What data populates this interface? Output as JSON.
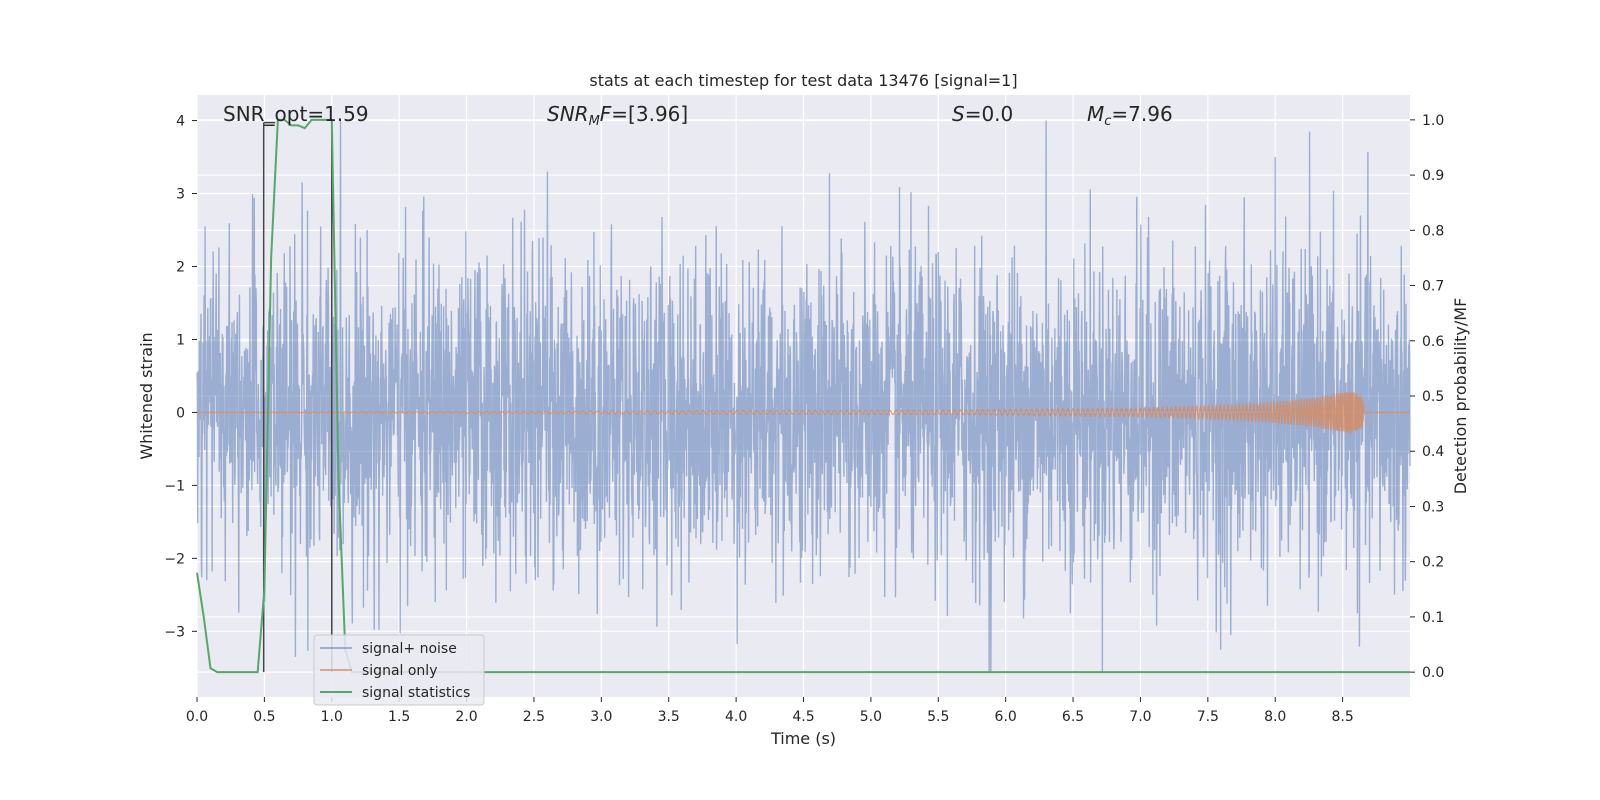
{
  "chart_data": {
    "type": "line",
    "title": "stats at each timestep for test data 13476 [signal=1]",
    "xlabel": "Time (s)",
    "ylabel": "Whitened strain",
    "y2label": "Detection probability/MF",
    "xlim": [
      0.0,
      9.0
    ],
    "ylim": [
      -3.9,
      4.35
    ],
    "y2lim": [
      -0.045,
      1.045
    ],
    "x_ticks": [
      "0.0",
      "0.5",
      "1.0",
      "1.5",
      "2.0",
      "2.5",
      "3.0",
      "3.5",
      "4.0",
      "4.5",
      "5.0",
      "5.5",
      "6.0",
      "6.5",
      "7.0",
      "7.5",
      "8.0",
      "8.5"
    ],
    "x_tick_values": [
      0.0,
      0.5,
      1.0,
      1.5,
      2.0,
      2.5,
      3.0,
      3.5,
      4.0,
      4.5,
      5.0,
      5.5,
      6.0,
      6.5,
      7.0,
      7.5,
      8.0,
      8.5
    ],
    "y_ticks": [
      "−3",
      "−2",
      "−1",
      "0",
      "1",
      "2",
      "3",
      "4"
    ],
    "y_tick_values": [
      -3,
      -2,
      -1,
      0,
      1,
      2,
      3,
      4
    ],
    "y2_ticks": [
      "0.0",
      "0.1",
      "0.2",
      "0.3",
      "0.4",
      "0.5",
      "0.6",
      "0.7",
      "0.8",
      "0.9",
      "1.0"
    ],
    "y2_tick_values": [
      0.0,
      0.1,
      0.2,
      0.3,
      0.4,
      0.5,
      0.6,
      0.7,
      0.8,
      0.9,
      1.0
    ],
    "grid": true,
    "legend_placement": "lower-left",
    "annotations": {
      "snr_opt": "SNR_opt=1.59",
      "snr_mf_prefix": "SNR",
      "snr_mf_sub": "M",
      "snr_mf_suffix": "F=[3.96]",
      "s_var": "S",
      "s_value": "=0.0",
      "mc_var": "M",
      "mc_sub": "c",
      "mc_value": "=7.96"
    },
    "series": [
      {
        "name": "signal+ noise",
        "color": "#4c72b0",
        "opacity": 0.5,
        "axis": "left",
        "description": "whitened noisy strain, roughly Gaussian with std ~1.1 over 0-9 s",
        "envelope_min": -3.55,
        "envelope_max": 4.0,
        "notable_peaks": [
          [
            0.06,
            2.55
          ],
          [
            0.78,
            3.15
          ],
          [
            2.6,
            3.3
          ],
          [
            6.3,
            4.0
          ],
          [
            8.0,
            3.5
          ],
          [
            5.89,
            -3.55
          ],
          [
            0.73,
            -3.35
          ],
          [
            7.67,
            -3.05
          ]
        ]
      },
      {
        "name": "signal only",
        "color": "#dd8452",
        "opacity": 0.7,
        "axis": "left",
        "description": "chirp signal, amplitude growing toward merger",
        "amplitude_points": [
          [
            0.0,
            0.0
          ],
          [
            5.5,
            0.03
          ],
          [
            7.0,
            0.06
          ],
          [
            7.8,
            0.11
          ],
          [
            8.3,
            0.2
          ],
          [
            8.55,
            0.3
          ],
          [
            8.65,
            0.22
          ],
          [
            8.66,
            0.0
          ],
          [
            9.0,
            0.0
          ]
        ]
      },
      {
        "name": "signal statistics",
        "color": "#55a868",
        "axis": "right",
        "x": [
          0.0,
          0.05,
          0.1,
          0.15,
          0.45,
          0.5,
          0.55,
          0.6,
          0.65,
          0.7,
          0.75,
          0.8,
          0.85,
          0.9,
          0.95,
          1.0,
          1.05,
          1.1,
          1.15,
          9.0
        ],
        "y": [
          0.18,
          0.1,
          0.007,
          0.0,
          0.0,
          0.15,
          0.75,
          1.0,
          1.0,
          0.99,
          0.99,
          0.985,
          1.0,
          1.0,
          1.0,
          1.0,
          0.35,
          0.04,
          0.0,
          0.0
        ]
      }
    ],
    "markers": {
      "color": "#444444",
      "segments": [
        {
          "x": 0.495,
          "y_from": 0.0,
          "y_to": 0.995,
          "axis": "right"
        },
        {
          "x": 0.495,
          "y_from": 0.995,
          "y_to": 0.995,
          "x_to": 0.58,
          "axis": "right"
        },
        {
          "x": 1.0,
          "y_from": 0.0,
          "y_to": 1.0,
          "axis": "right"
        }
      ]
    }
  }
}
